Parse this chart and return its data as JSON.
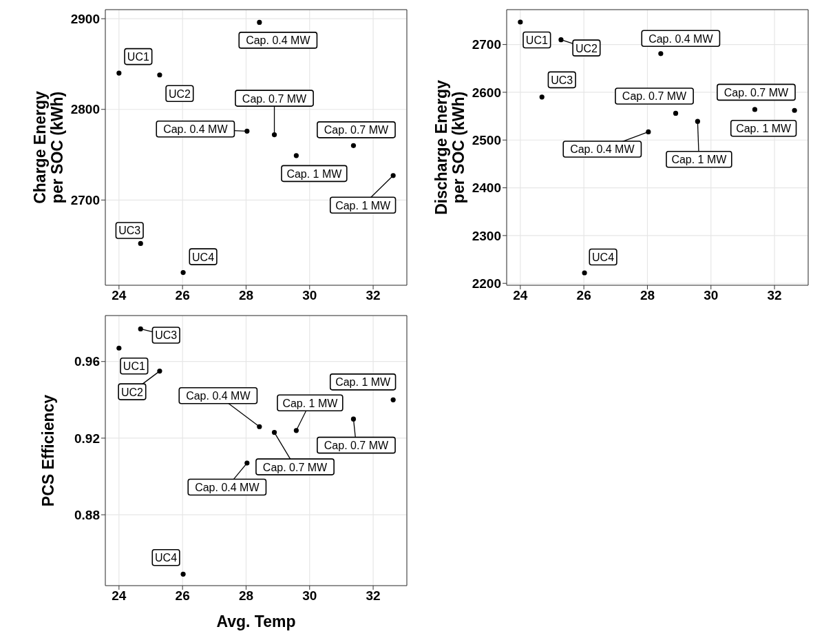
{
  "chart_data": [
    {
      "type": "scatter",
      "ylabel": "Charge Energy\nper SOC (kWh)",
      "x": [
        24.0,
        25.28,
        24.68,
        26.02,
        28.42,
        28.03,
        28.89,
        29.58,
        31.38,
        32.63
      ],
      "values": [
        2840,
        2838,
        2652,
        2620,
        2896,
        2776,
        2772,
        2749,
        2760,
        2727
      ],
      "color": "#000000",
      "marker": "circle",
      "grid": true,
      "xlim": [
        23.57,
        33.06
      ],
      "xticks": [
        24,
        26,
        28,
        30,
        32
      ],
      "ylim": [
        2606,
        2910
      ],
      "yticks": [
        2700,
        2800,
        2900
      ],
      "annotations": [
        {
          "text": "UC1",
          "x": 24.0,
          "y": 2840
        },
        {
          "text": "UC2",
          "x": 25.28,
          "y": 2838
        },
        {
          "text": "UC3",
          "x": 24.68,
          "y": 2652
        },
        {
          "text": "UC4",
          "x": 26.02,
          "y": 2620
        },
        {
          "text": "Cap. 0.4 MW",
          "x": 28.42,
          "y": 2896
        },
        {
          "text": "Cap. 0.4 MW",
          "x": 28.03,
          "y": 2776
        },
        {
          "text": "Cap. 0.7 MW",
          "x": 28.89,
          "y": 2772
        },
        {
          "text": "Cap. 1 MW",
          "x": 29.58,
          "y": 2749
        },
        {
          "text": "Cap. 0.7 MW",
          "x": 31.38,
          "y": 2760
        },
        {
          "text": "Cap. 1 MW",
          "x": 32.63,
          "y": 2727
        }
      ]
    },
    {
      "type": "scatter",
      "ylabel": "Discharge Energy\nper SOC (kWh)",
      "x": [
        24.0,
        25.28,
        24.68,
        26.02,
        28.42,
        28.03,
        28.89,
        29.58,
        31.38,
        32.63
      ],
      "values": [
        2747,
        2710,
        2590,
        2222,
        2681,
        2517,
        2556,
        2539,
        2564,
        2562
      ],
      "color": "#000000",
      "marker": "circle",
      "grid": true,
      "xlim": [
        23.57,
        33.06
      ],
      "xticks": [
        24,
        26,
        28,
        30,
        32
      ],
      "ylim": [
        2196,
        2773
      ],
      "yticks": [
        2200,
        2300,
        2400,
        2500,
        2600,
        2700
      ],
      "annotations": [
        {
          "text": "UC1",
          "x": 24.0,
          "y": 2747
        },
        {
          "text": "UC2",
          "x": 25.28,
          "y": 2710
        },
        {
          "text": "UC3",
          "x": 24.68,
          "y": 2590
        },
        {
          "text": "UC4",
          "x": 26.02,
          "y": 2222
        },
        {
          "text": "Cap. 0.4 MW",
          "x": 28.42,
          "y": 2681
        },
        {
          "text": "Cap. 0.4 MW",
          "x": 28.03,
          "y": 2517
        },
        {
          "text": "Cap. 0.7 MW",
          "x": 28.89,
          "y": 2556
        },
        {
          "text": "Cap. 1 MW",
          "x": 29.58,
          "y": 2539
        },
        {
          "text": "Cap. 0.7 MW",
          "x": 31.38,
          "y": 2564
        },
        {
          "text": "Cap. 1 MW",
          "x": 32.63,
          "y": 2562
        }
      ]
    },
    {
      "type": "scatter",
      "xlabel": "Avg. Temp",
      "ylabel": "PCS Efficiency",
      "x": [
        24.0,
        25.28,
        24.68,
        26.02,
        28.42,
        28.03,
        28.89,
        29.58,
        31.38,
        32.63
      ],
      "values": [
        0.967,
        0.955,
        0.977,
        0.849,
        0.926,
        0.907,
        0.923,
        0.924,
        0.93,
        0.94
      ],
      "color": "#000000",
      "marker": "circle",
      "grid": true,
      "xlim": [
        23.57,
        33.06
      ],
      "xticks": [
        24,
        26,
        28,
        30,
        32
      ],
      "ylim": [
        0.843,
        0.984
      ],
      "yticks": [
        0.88,
        0.92,
        0.96
      ],
      "annotations": [
        {
          "text": "UC1",
          "x": 24.0,
          "y": 0.967
        },
        {
          "text": "UC2",
          "x": 25.28,
          "y": 0.955
        },
        {
          "text": "UC3",
          "x": 24.68,
          "y": 0.977
        },
        {
          "text": "UC4",
          "x": 26.02,
          "y": 0.849
        },
        {
          "text": "Cap. 0.4 MW",
          "x": 28.42,
          "y": 0.926
        },
        {
          "text": "Cap. 0.4 MW",
          "x": 28.03,
          "y": 0.907
        },
        {
          "text": "Cap. 0.7 MW",
          "x": 28.89,
          "y": 0.923
        },
        {
          "text": "Cap. 1 MW",
          "x": 29.58,
          "y": 0.924
        },
        {
          "text": "Cap. 0.7 MW",
          "x": 31.38,
          "y": 0.93
        },
        {
          "text": "Cap. 1 MW",
          "x": 32.63,
          "y": 0.94
        }
      ]
    }
  ]
}
